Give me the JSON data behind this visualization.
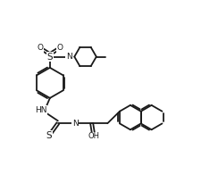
{
  "bg_color": "#ffffff",
  "line_color": "#1a1a1a",
  "line_width": 1.3,
  "font_size": 6.5,
  "xlim": [
    0,
    10
  ],
  "ylim": [
    0,
    9
  ],
  "figsize": [
    2.44,
    2.14
  ],
  "dpi": 100
}
